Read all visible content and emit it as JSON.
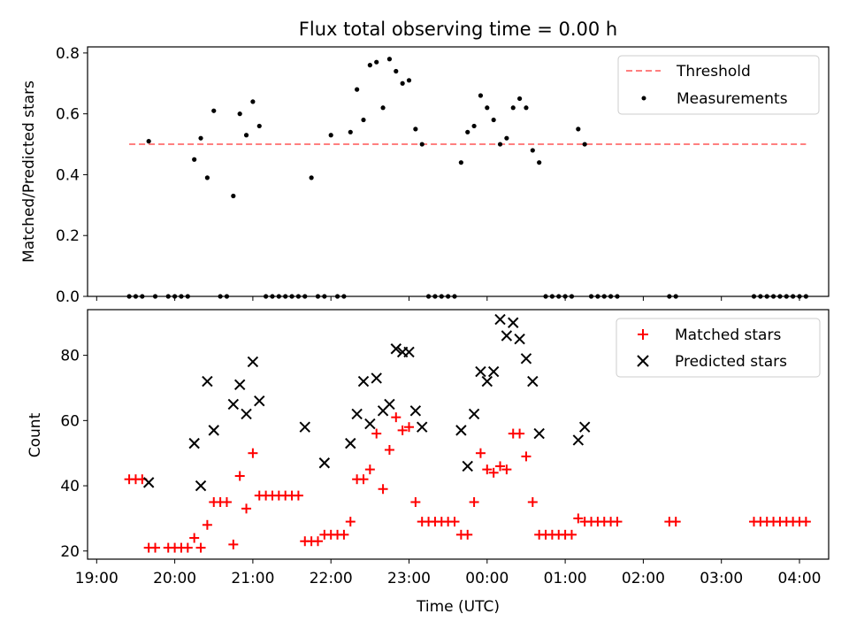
{
  "figure": {
    "title": "Flux total observing time = 0.00 h"
  },
  "chart_data": [
    {
      "type": "scatter",
      "panel": "top",
      "ylabel": "Matched/Predicted stars",
      "xlabel": "",
      "ylim": [
        0,
        0.82
      ],
      "yticks": [
        0.0,
        0.2,
        0.4,
        0.6,
        0.8
      ],
      "ytick_labels": [
        "0.0",
        "0.2",
        "0.4",
        "0.6",
        "0.8"
      ],
      "grid": false,
      "legend": {
        "placement": "top-right",
        "entries": [
          "Threshold",
          "Measurements"
        ]
      },
      "colors": {
        "threshold": "#ff7f7f",
        "measurements": "#000000"
      },
      "threshold": {
        "name": "Threshold",
        "value": 0.5,
        "x_range": [
          "19:25",
          "04:05"
        ]
      },
      "series": [
        {
          "name": "Measurements",
          "x": [
            "19:25",
            "19:30",
            "19:35",
            "19:40",
            "19:45",
            "19:55",
            "20:00",
            "20:05",
            "20:10",
            "20:15",
            "20:20",
            "20:25",
            "20:30",
            "20:35",
            "20:40",
            "20:45",
            "20:50",
            "20:55",
            "21:00",
            "21:05",
            "21:10",
            "21:15",
            "21:20",
            "21:25",
            "21:30",
            "21:35",
            "21:40",
            "21:45",
            "21:50",
            "21:55",
            "22:00",
            "22:05",
            "22:10",
            "22:15",
            "22:20",
            "22:25",
            "22:30",
            "22:35",
            "22:40",
            "22:45",
            "22:50",
            "22:55",
            "23:00",
            "23:05",
            "23:10",
            "23:15",
            "23:20",
            "23:25",
            "23:30",
            "23:35",
            "23:40",
            "23:45",
            "23:50",
            "23:55",
            "00:00",
            "00:05",
            "00:10",
            "00:15",
            "00:20",
            "00:25",
            "00:30",
            "00:35",
            "00:40",
            "00:45",
            "00:50",
            "00:55",
            "01:00",
            "01:05",
            "01:10",
            "01:15",
            "01:20",
            "01:25",
            "01:30",
            "01:35",
            "01:40",
            "02:20",
            "02:25",
            "03:25",
            "03:30",
            "03:35",
            "03:40",
            "03:45",
            "03:50",
            "03:55",
            "04:00",
            "04:05"
          ],
          "y": [
            0,
            0,
            0,
            0.51,
            0,
            0,
            0,
            0,
            0,
            0.45,
            0.52,
            0.39,
            0.61,
            0,
            0,
            0.33,
            0.6,
            0.53,
            0.64,
            0.56,
            0,
            0,
            0,
            0,
            0,
            0,
            0,
            0.39,
            0,
            0,
            0.53,
            0,
            0,
            0.54,
            0.68,
            0.58,
            0.76,
            0.77,
            0.62,
            0.78,
            0.74,
            0.7,
            0.71,
            0.55,
            0.5,
            0,
            0,
            0,
            0,
            0,
            0.44,
            0.54,
            0.56,
            0.66,
            0.62,
            0.58,
            0.5,
            0.52,
            0.62,
            0.65,
            0.62,
            0.48,
            0.44,
            0,
            0,
            0,
            0,
            0,
            0.55,
            0.5,
            0,
            0,
            0,
            0,
            0,
            0,
            0,
            0,
            0,
            0,
            0,
            0,
            0,
            0,
            0,
            0
          ]
        }
      ]
    },
    {
      "type": "scatter",
      "panel": "bottom",
      "ylabel": "Count",
      "xlabel": "Time (UTC)",
      "ylim": [
        17.5,
        94
      ],
      "yticks": [
        20,
        40,
        60,
        80
      ],
      "ytick_labels": [
        "20",
        "40",
        "60",
        "80"
      ],
      "x_tick_labels": [
        "19:00",
        "20:00",
        "21:00",
        "22:00",
        "23:00",
        "00:00",
        "01:00",
        "02:00",
        "03:00",
        "04:00"
      ],
      "grid": false,
      "legend": {
        "placement": "top-right",
        "entries": [
          "Matched stars",
          "Predicted stars"
        ]
      },
      "colors": {
        "matched": "#ff0000",
        "predicted": "#000000"
      },
      "series": [
        {
          "name": "Matched stars",
          "marker": "plus",
          "x": [
            "19:25",
            "19:30",
            "19:35",
            "19:40",
            "19:45",
            "19:55",
            "20:00",
            "20:05",
            "20:10",
            "20:15",
            "20:20",
            "20:25",
            "20:30",
            "20:35",
            "20:40",
            "20:45",
            "20:50",
            "20:55",
            "21:00",
            "21:05",
            "21:10",
            "21:15",
            "21:20",
            "21:25",
            "21:30",
            "21:35",
            "21:40",
            "21:45",
            "21:50",
            "21:55",
            "22:00",
            "22:05",
            "22:10",
            "22:15",
            "22:20",
            "22:25",
            "22:30",
            "22:35",
            "22:40",
            "22:45",
            "22:50",
            "22:55",
            "23:00",
            "23:05",
            "23:10",
            "23:15",
            "23:20",
            "23:25",
            "23:30",
            "23:35",
            "23:40",
            "23:45",
            "23:50",
            "23:55",
            "00:00",
            "00:05",
            "00:10",
            "00:15",
            "00:20",
            "00:25",
            "00:30",
            "00:35",
            "00:40",
            "00:45",
            "00:50",
            "00:55",
            "01:00",
            "01:05",
            "01:10",
            "01:15",
            "01:20",
            "01:25",
            "01:30",
            "01:35",
            "01:40",
            "02:20",
            "02:25",
            "03:25",
            "03:30",
            "03:35",
            "03:40",
            "03:45",
            "03:50",
            "03:55",
            "04:00",
            "04:05"
          ],
          "y": [
            42,
            42,
            42,
            21,
            21,
            21,
            21,
            21,
            21,
            24,
            21,
            28,
            35,
            35,
            35,
            22,
            43,
            33,
            50,
            37,
            37,
            37,
            37,
            37,
            37,
            37,
            23,
            23,
            23,
            25,
            25,
            25,
            25,
            29,
            42,
            42,
            45,
            56,
            39,
            51,
            61,
            57,
            58,
            35,
            29,
            29,
            29,
            29,
            29,
            29,
            25,
            25,
            35,
            50,
            45,
            44,
            46,
            45,
            56,
            56,
            49,
            35,
            25,
            25,
            25,
            25,
            25,
            25,
            30,
            29,
            29,
            29,
            29,
            29,
            29,
            29,
            29,
            29,
            29,
            29,
            29,
            29,
            29,
            29,
            29,
            29
          ]
        },
        {
          "name": "Predicted stars",
          "marker": "x",
          "x": [
            "19:40",
            "20:15",
            "20:20",
            "20:25",
            "20:30",
            "20:45",
            "20:50",
            "20:55",
            "21:00",
            "21:05",
            "21:40",
            "21:55",
            "22:15",
            "22:20",
            "22:25",
            "22:30",
            "22:35",
            "22:40",
            "22:45",
            "22:50",
            "22:55",
            "23:00",
            "23:05",
            "23:10",
            "23:40",
            "23:45",
            "23:50",
            "23:55",
            "00:00",
            "00:05",
            "00:10",
            "00:15",
            "00:20",
            "00:25",
            "00:30",
            "00:35",
            "00:40",
            "01:10",
            "01:15"
          ],
          "y": [
            41,
            53,
            40,
            72,
            57,
            65,
            71,
            62,
            78,
            66,
            58,
            47,
            53,
            62,
            72,
            59,
            73,
            63,
            65,
            82,
            81,
            81,
            63,
            58,
            57,
            46,
            62,
            75,
            72,
            75,
            91,
            86,
            90,
            85,
            79,
            72,
            56,
            54,
            58
          ]
        }
      ]
    }
  ]
}
